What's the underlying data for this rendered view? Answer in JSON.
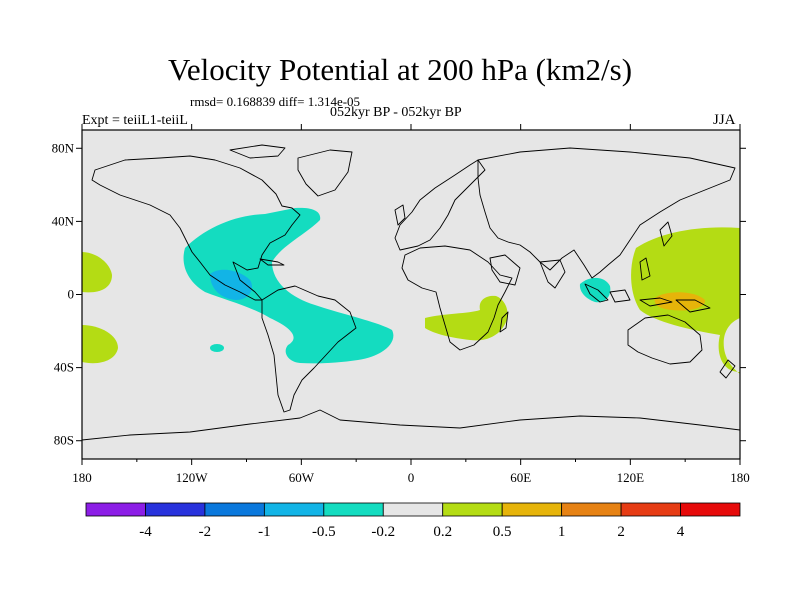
{
  "title": "Velocity Potential at 200 hPa (km2/s)",
  "stats": "rmsd= 0.168839 diff= 1.314e-05",
  "experiment": "Expt = teiiL1-teiiL",
  "period": "052kyr BP - 052kyr BP",
  "season": "JJA",
  "map": {
    "projection": "cylindrical-equidistant",
    "lon_range": [
      -180,
      180
    ],
    "lat_range": [
      -90,
      90
    ],
    "lon_ticks": [
      {
        "value": -180,
        "label": "180"
      },
      {
        "value": -120,
        "label": "120W"
      },
      {
        "value": -60,
        "label": "60W"
      },
      {
        "value": 0,
        "label": "0"
      },
      {
        "value": 60,
        "label": "60E"
      },
      {
        "value": 120,
        "label": "120E"
      },
      {
        "value": 180,
        "label": "180"
      }
    ],
    "lat_ticks": [
      {
        "value": 80,
        "label": "80N"
      },
      {
        "value": 40,
        "label": "40N"
      },
      {
        "value": 0,
        "label": "0"
      },
      {
        "value": -40,
        "label": "40S"
      },
      {
        "value": -80,
        "label": "80S"
      }
    ],
    "background_color": "#e6e6e6",
    "coastline_color": "#000000"
  },
  "colorbar": {
    "colors": [
      "#8c1ee6",
      "#2832dc",
      "#0a78dc",
      "#12b4e6",
      "#14dcc0",
      "#e6e6e6",
      "#b4dc14",
      "#e6b40a",
      "#e68214",
      "#e63c14",
      "#e60a0a"
    ],
    "labels": [
      "-4",
      "-2",
      "-1",
      "-0.5",
      "-0.2",
      "0.2",
      "0.5",
      "1",
      "2",
      "4"
    ]
  },
  "anomalies": [
    {
      "name": "americas-negative",
      "level": "-0.2",
      "color": "#14dcc0"
    },
    {
      "name": "central-america-core",
      "level": "-0.5",
      "color": "#12b4e6"
    },
    {
      "name": "sumatra-negative",
      "level": "-0.2",
      "color": "#14dcc0"
    },
    {
      "name": "west-pacific-positive",
      "level": "0.2",
      "color": "#b4dc14"
    },
    {
      "name": "new-guinea-core",
      "level": "0.5",
      "color": "#e6b40a"
    },
    {
      "name": "south-africa-positive",
      "level": "0.2",
      "color": "#b4dc14"
    },
    {
      "name": "dateline-north-positive",
      "level": "0.2",
      "color": "#b4dc14"
    },
    {
      "name": "dateline-south-positive",
      "level": "0.2",
      "color": "#b4dc14"
    }
  ]
}
